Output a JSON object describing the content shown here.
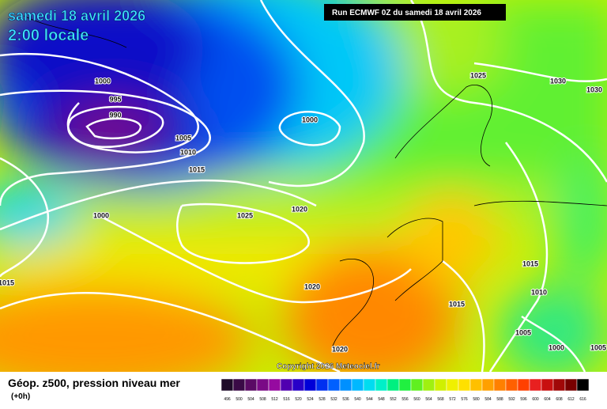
{
  "header": {
    "date": "samedi 18 avril 2026",
    "time": "2:00 locale",
    "run": "Run ECMWF 0Z du samedi 18 avril 2026"
  },
  "copyright": "Copyright 2026 Meteociel.fr",
  "legend": {
    "title": "Géop. z500, pression niveau mer",
    "step": "(+0h)",
    "colorbar": {
      "labels": [
        "496",
        "500",
        "504",
        "508",
        "512",
        "516",
        "520",
        "524",
        "528",
        "532",
        "536",
        "540",
        "544",
        "548",
        "552",
        "556",
        "560",
        "564",
        "568",
        "572",
        "576",
        "580",
        "584",
        "588",
        "592",
        "596",
        "600",
        "604",
        "608",
        "612",
        "616"
      ],
      "colors": [
        "#1e0a28",
        "#3a0a46",
        "#5a0a64",
        "#7a0a86",
        "#960aa0",
        "#5000b0",
        "#2800c8",
        "#0000d8",
        "#0030f0",
        "#0060ff",
        "#0090ff",
        "#00b8ff",
        "#00dcf0",
        "#00f0c8",
        "#00f080",
        "#20f040",
        "#60f020",
        "#a0f010",
        "#d0f000",
        "#f0f000",
        "#ffe000",
        "#ffc000",
        "#ffa000",
        "#ff8000",
        "#ff6000",
        "#ff4000",
        "#e82020",
        "#c81010",
        "#a00808",
        "#780000",
        "#000000"
      ]
    }
  },
  "isobar_labels": [
    "1000",
    "995",
    "990",
    "1005",
    "1010",
    "1015",
    "1000",
    "1025",
    "1020",
    "1000",
    "1015",
    "1020",
    "1025",
    "1030",
    "1030",
    "1015",
    "1010",
    "1015",
    "1005",
    "1000",
    "1020",
    "1005"
  ]
}
